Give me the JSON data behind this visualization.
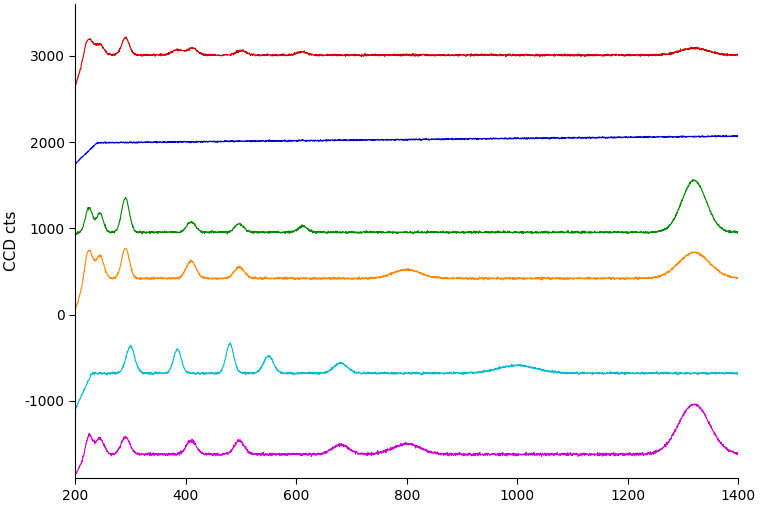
{
  "x_min": 200,
  "x_max": 1400,
  "y_label": "CCD cts",
  "yticks": [
    3000,
    2000,
    1000,
    0,
    -1000
  ],
  "ytick_labels": [
    "3000",
    "2000",
    "1000",
    "0",
    "-1000"
  ],
  "ylim": [
    -1900,
    3600
  ],
  "background_color": "#ffffff",
  "linewidth": 0.8
}
